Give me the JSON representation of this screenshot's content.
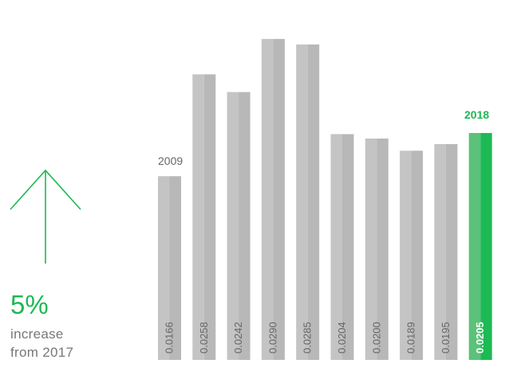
{
  "colors": {
    "accent": "#1db954",
    "accent_light": "#5cc17a",
    "bar": "#c4c4c4",
    "bar_shade": "#b8b8b8",
    "label": "#666666"
  },
  "icons": {
    "indicator": "up-arrow-icon"
  },
  "callout": {
    "percent": "5%",
    "line1": "increase",
    "line2": "from 2017"
  },
  "chart_data": {
    "type": "bar",
    "start_label": "2009",
    "end_label": "2018",
    "ylim": [
      0,
      0.03
    ],
    "grid": false,
    "values": [
      0.0166,
      0.0258,
      0.0242,
      0.029,
      0.0285,
      0.0204,
      0.02,
      0.0189,
      0.0195,
      0.0205
    ],
    "value_labels": [
      "0.0166",
      "0.0258",
      "0.0242",
      "0.0290",
      "0.0285",
      "0.0204",
      "0.0200",
      "0.0189",
      "0.0195",
      "0.0205"
    ],
    "highlight_index": 9
  }
}
